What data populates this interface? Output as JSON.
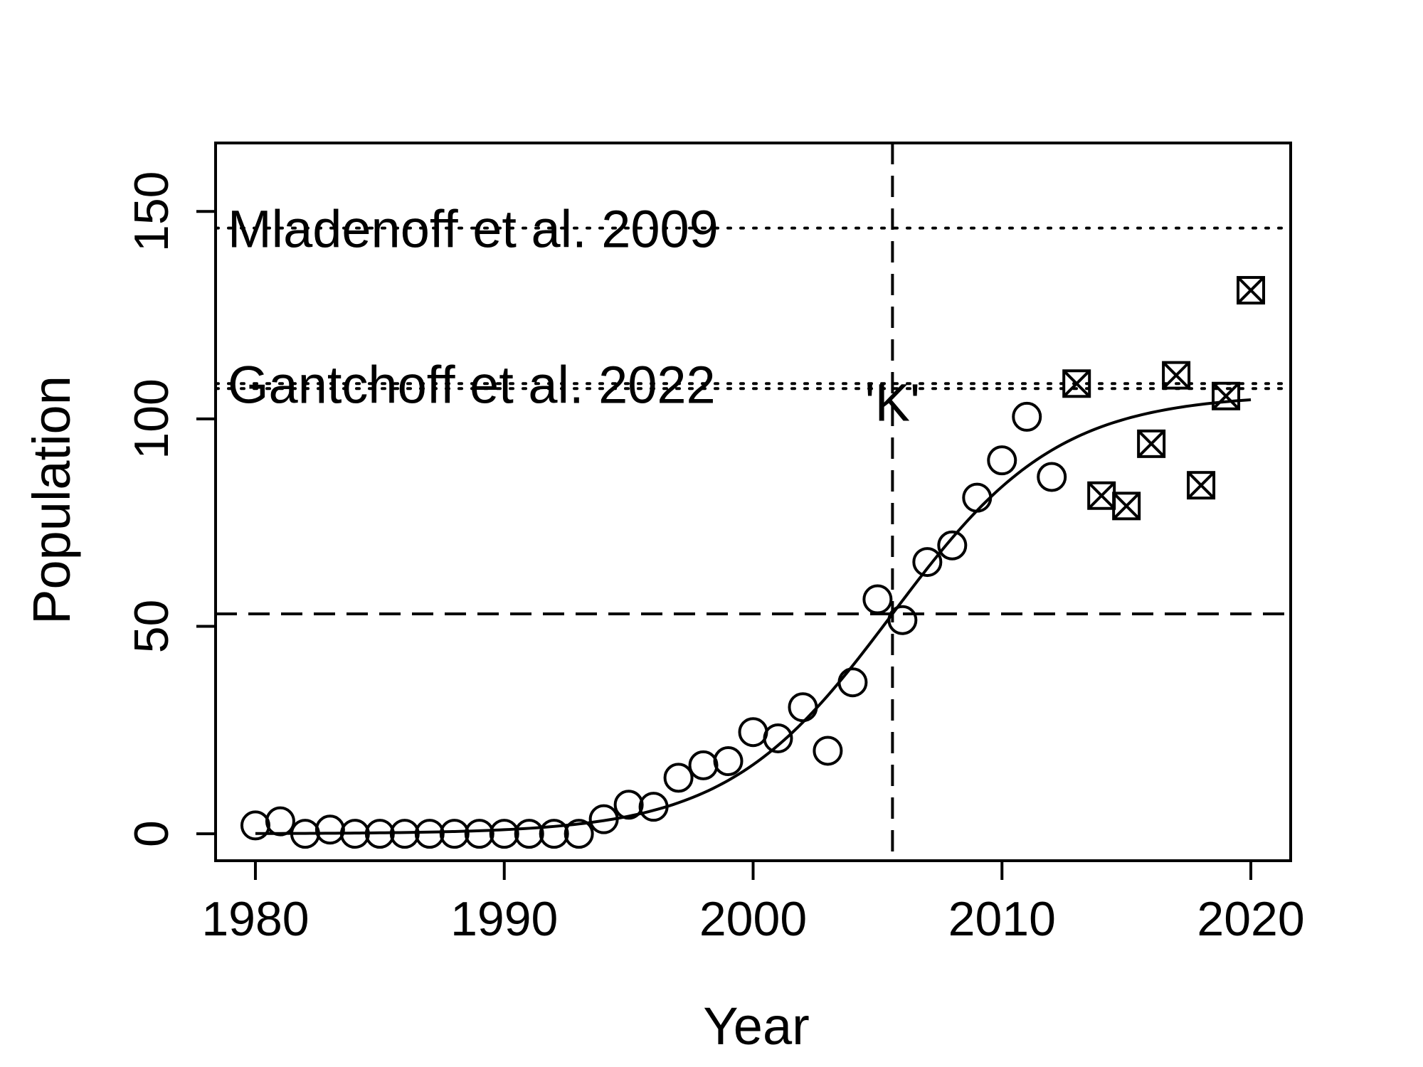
{
  "chart_data": {
    "type": "scatter",
    "xlabel": "Year",
    "ylabel": "Population",
    "xlim": [
      1978.4,
      2021.6
    ],
    "ylim": [
      -6.5,
      166.5
    ],
    "x_ticks": [
      {
        "value": 1980,
        "label": "1980"
      },
      {
        "value": 1990,
        "label": "1990"
      },
      {
        "value": 2000,
        "label": "2000"
      },
      {
        "value": 2010,
        "label": "2010"
      },
      {
        "value": 2020,
        "label": "2020"
      }
    ],
    "y_ticks": [
      {
        "value": 0,
        "label": "0"
      },
      {
        "value": 50,
        "label": "50"
      },
      {
        "value": 100,
        "label": "100"
      },
      {
        "value": 150,
        "label": "150"
      }
    ],
    "grid": false,
    "series": [
      {
        "marker": "circle",
        "points": [
          {
            "x": 1980,
            "y": 2
          },
          {
            "x": 1981,
            "y": 3
          },
          {
            "x": 1982,
            "y": 0
          },
          {
            "x": 1983,
            "y": 1
          },
          {
            "x": 1984,
            "y": 0
          },
          {
            "x": 1985,
            "y": 0
          },
          {
            "x": 1986,
            "y": 0
          },
          {
            "x": 1987,
            "y": 0
          },
          {
            "x": 1988,
            "y": 0
          },
          {
            "x": 1989,
            "y": 0
          },
          {
            "x": 1990,
            "y": 0
          },
          {
            "x": 1991,
            "y": 0
          },
          {
            "x": 1992,
            "y": 0
          },
          {
            "x": 1993,
            "y": 0
          },
          {
            "x": 1994,
            "y": 3.5
          },
          {
            "x": 1995,
            "y": 7
          },
          {
            "x": 1996,
            "y": 6.5
          },
          {
            "x": 1997,
            "y": 13.5
          },
          {
            "x": 1998,
            "y": 16.5
          },
          {
            "x": 1999,
            "y": 17.5
          },
          {
            "x": 2000,
            "y": 24.5
          },
          {
            "x": 2001,
            "y": 23
          },
          {
            "x": 2002,
            "y": 30.5
          },
          {
            "x": 2003,
            "y": 20
          },
          {
            "x": 2004,
            "y": 36.5
          },
          {
            "x": 2005,
            "y": 56.5
          },
          {
            "x": 2006,
            "y": 51.5
          },
          {
            "x": 2007,
            "y": 65.5
          },
          {
            "x": 2008,
            "y": 69.5
          },
          {
            "x": 2009,
            "y": 81
          },
          {
            "x": 2010,
            "y": 90
          },
          {
            "x": 2011,
            "y": 100.5
          },
          {
            "x": 2012,
            "y": 86
          }
        ]
      },
      {
        "marker": "boxed-x",
        "points": [
          {
            "x": 2013,
            "y": 108.5
          },
          {
            "x": 2014,
            "y": 81.5
          },
          {
            "x": 2015,
            "y": 79
          },
          {
            "x": 2016,
            "y": 94
          },
          {
            "x": 2017,
            "y": 110.5
          },
          {
            "x": 2018,
            "y": 84
          },
          {
            "x": 2019,
            "y": 105.5
          },
          {
            "x": 2020,
            "y": 131
          }
        ]
      }
    ],
    "logistic_curve": {
      "K": 106,
      "r": 0.3,
      "midpoint": 2005.6,
      "x_start": 1980,
      "x_end": 2020
    },
    "reference_lines": {
      "horizontal_dotted": [
        {
          "y": 146,
          "label": "Mladenoff et al. 2009"
        },
        {
          "y": 108.5,
          "label": "Gantchoff et al. 2022"
        },
        {
          "y": 107.3
        }
      ],
      "horizontal_dashed": {
        "y": 53
      },
      "vertical_dashed": {
        "x": 2005.6,
        "label": "'K'",
        "label_y": 104
      }
    }
  }
}
